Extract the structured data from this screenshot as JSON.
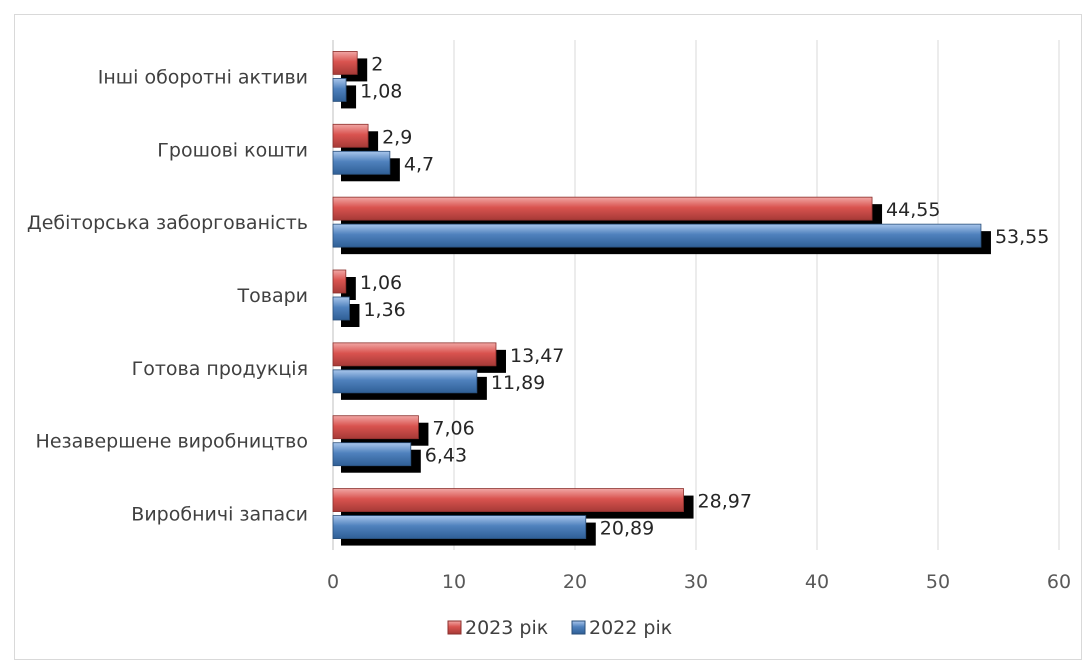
{
  "chart_data": {
    "type": "bar",
    "orientation": "horizontal",
    "categories": [
      "Інші оборотні активи",
      "Грошові кошти",
      "Дебіторська заборгованість",
      "Товари",
      "Готова продукція",
      "Незавершене виробництво",
      "Виробничі запаси"
    ],
    "series": [
      {
        "name": "2023 рік",
        "color": "#c0504d",
        "values": [
          2,
          2.9,
          44.55,
          1.06,
          13.47,
          7.06,
          28.97
        ],
        "labels": [
          "2",
          "2,9",
          "44,55",
          "1,06",
          "13,47",
          "7,06",
          "28,97"
        ]
      },
      {
        "name": "2022 рік",
        "color": "#4f81bd",
        "values": [
          1.08,
          4.7,
          53.55,
          1.36,
          11.89,
          6.43,
          20.89
        ],
        "labels": [
          "1,08",
          "4,7",
          "53,55",
          "1,36",
          "11,89",
          "6,43",
          "20,89"
        ]
      }
    ],
    "xlim": [
      0,
      60
    ],
    "ticks": [
      "0",
      "10",
      "20",
      "30",
      "40",
      "50",
      "60"
    ],
    "grid": true,
    "legend": "bottom",
    "title": "",
    "xlabel": "",
    "ylabel": ""
  }
}
